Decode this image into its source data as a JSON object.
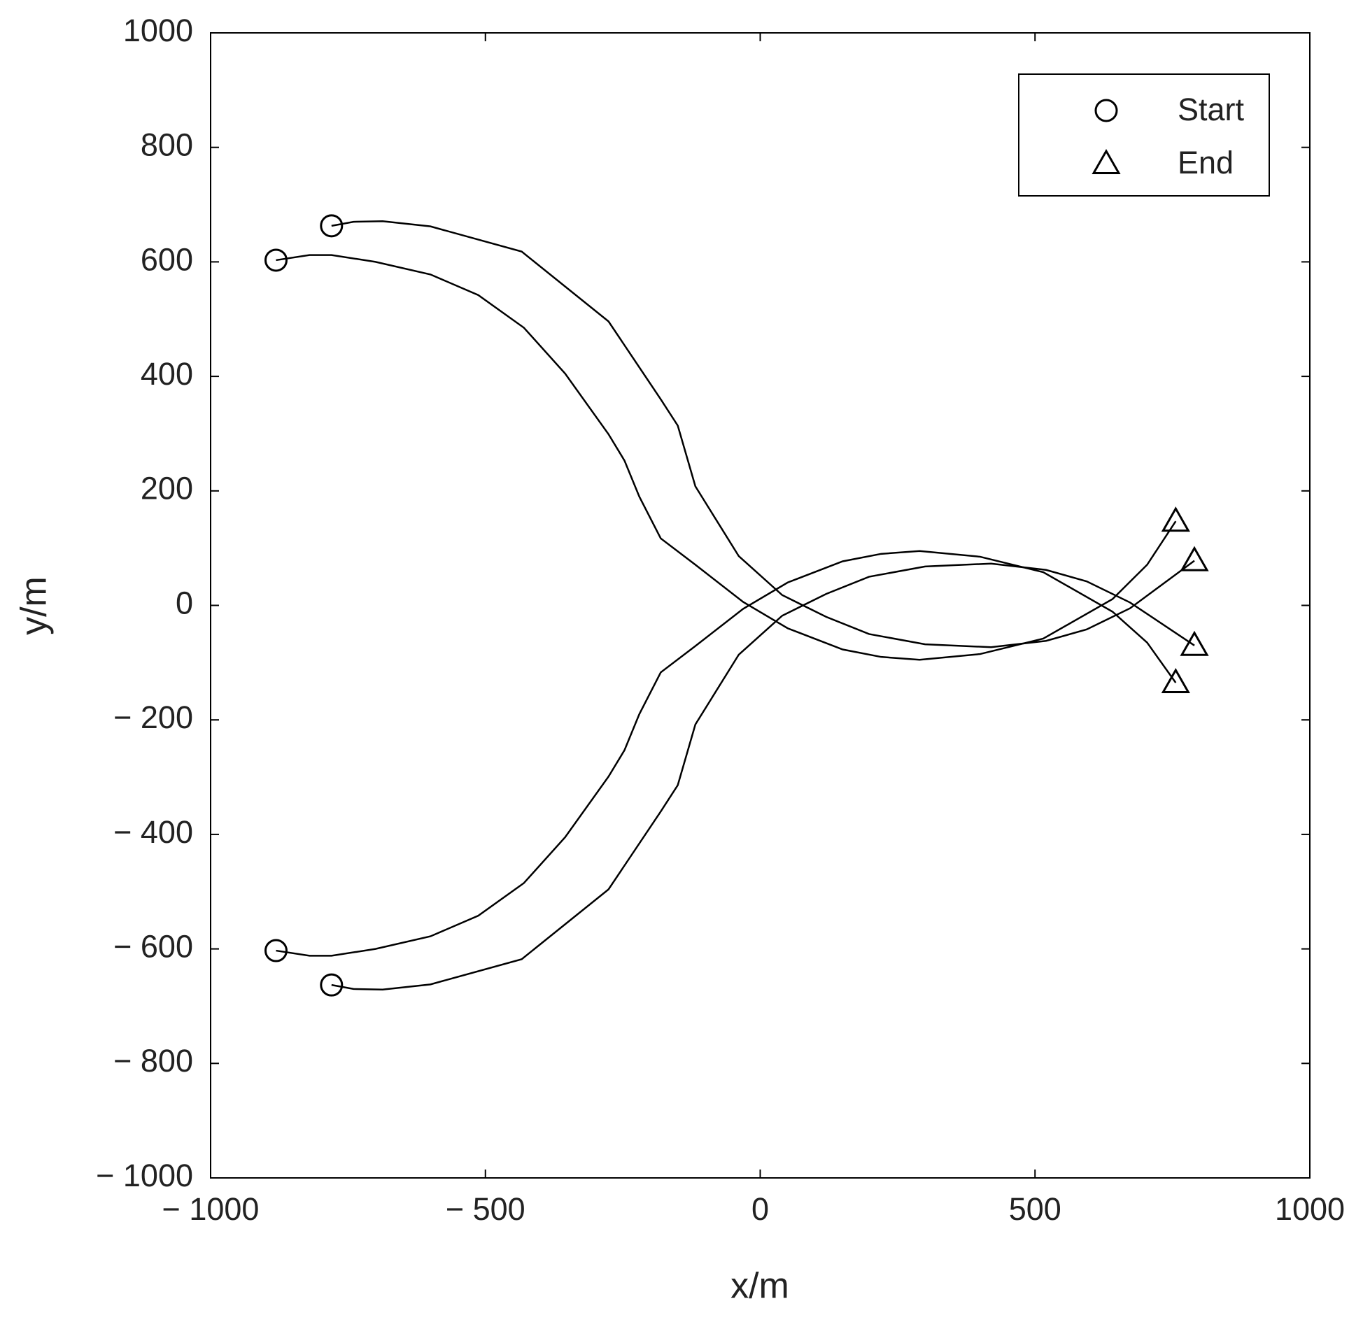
{
  "chart_data": {
    "type": "line",
    "xlabel": "x/m",
    "ylabel": "y/m",
    "xlim": [
      -1000,
      1000
    ],
    "ylim": [
      -1000,
      1000
    ],
    "xticks": [
      {
        "value": -1000,
        "label": "− 1000"
      },
      {
        "value": -500,
        "label": "− 500"
      },
      0,
      500,
      1000
    ],
    "yticks": [
      {
        "value": -1000,
        "label": "− 1000"
      },
      {
        "value": -800,
        "label": "− 800"
      },
      {
        "value": -600,
        "label": "− 600"
      },
      {
        "value": -400,
        "label": "− 400"
      },
      {
        "value": -200,
        "label": "− 200"
      },
      0,
      200,
      400,
      600,
      800,
      1000
    ],
    "grid": false,
    "start_marker": "circle",
    "end_marker": "triangle",
    "legend": {
      "position": "upper right",
      "entries": [
        {
          "label": "Start",
          "marker": "circle"
        },
        {
          "label": "End",
          "marker": "triangle"
        }
      ]
    },
    "series": [
      {
        "color": "#000000",
        "x": [
          -881,
          -820,
          -780,
          -700,
          -600,
          -513,
          -430,
          -355,
          -276,
          -247,
          -220,
          -181,
          -118,
          -31,
          50,
          150,
          220,
          290,
          400,
          515,
          641,
          704,
          756
        ],
        "values": [
          603,
          612,
          612,
          600,
          578,
          542,
          485,
          405,
          299,
          253,
          190,
          117,
          71,
          6,
          -40,
          -77,
          -90,
          -95,
          -85,
          -58,
          11,
          71,
          147
        ]
      },
      {
        "color": "#000000",
        "x": [
          -780,
          -740,
          -687,
          -600,
          -434,
          -276,
          -181,
          -150,
          -118,
          -39,
          40,
          120,
          198,
          300,
          420,
          520,
          594,
          673,
          790
        ],
        "values": [
          663,
          670,
          671,
          662,
          618,
          496,
          360,
          314,
          208,
          86,
          18,
          -20,
          -50,
          -68,
          -73,
          -62,
          -42,
          -5,
          78
        ]
      },
      {
        "color": "#000000",
        "x": [
          -881,
          -820,
          -780,
          -700,
          -600,
          -513,
          -430,
          -355,
          -276,
          -247,
          -220,
          -181,
          -118,
          -31,
          50,
          150,
          220,
          290,
          400,
          515,
          641,
          704,
          756
        ],
        "values": [
          -603,
          -612,
          -612,
          -600,
          -578,
          -542,
          -485,
          -405,
          -299,
          -253,
          -190,
          -117,
          -71,
          -6,
          40,
          77,
          90,
          95,
          85,
          58,
          -11,
          -65,
          -135
        ]
      },
      {
        "color": "#000000",
        "x": [
          -780,
          -740,
          -687,
          -600,
          -434,
          -276,
          -181,
          -150,
          -118,
          -39,
          40,
          120,
          198,
          300,
          420,
          520,
          594,
          673,
          790
        ],
        "values": [
          -663,
          -670,
          -671,
          -662,
          -618,
          -496,
          -360,
          -314,
          -208,
          -86,
          -18,
          20,
          50,
          68,
          73,
          62,
          42,
          5,
          -70
        ]
      }
    ]
  }
}
